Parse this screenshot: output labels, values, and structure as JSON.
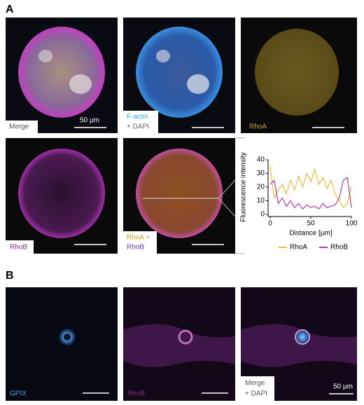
{
  "panels": {
    "a": {
      "label": "A",
      "merge": "Merge",
      "scale1": "50 µm",
      "factin": "F-actin",
      "dapi1": "+ DAPI",
      "rhoa": "RhoA",
      "rhob": "RhoB",
      "overlay_rhoa": "RhoA +",
      "overlay_rhob": "RhoB"
    },
    "b": {
      "label": "B",
      "gpix": "GPIX",
      "rhob": "RhoB",
      "merge": "Merge",
      "dapi": "+ DAPI",
      "scale": "50 µm"
    }
  },
  "chart_data": {
    "type": "line",
    "ylabel": "Fluorescence intensity",
    "xlabel": "Distance [µm]",
    "x": [
      0,
      5,
      10,
      15,
      20,
      25,
      30,
      35,
      40,
      45,
      50,
      55,
      60,
      65,
      70,
      75,
      80,
      85,
      90,
      95,
      100
    ],
    "series": [
      {
        "name": "RhoA",
        "color": "#f0b93c",
        "values": [
          35,
          12,
          18,
          22,
          15,
          25,
          18,
          28,
          20,
          30,
          24,
          33,
          22,
          27,
          19,
          25,
          15,
          10,
          5,
          8,
          20
        ]
      },
      {
        "name": "RhoB",
        "color": "#b03cb0",
        "values": [
          22,
          25,
          8,
          12,
          6,
          10,
          5,
          8,
          4,
          7,
          5,
          6,
          4,
          8,
          5,
          6,
          7,
          12,
          25,
          27,
          5
        ]
      }
    ],
    "xlim": [
      0,
      100
    ],
    "ylim": [
      0,
      40
    ],
    "xticks": [
      0,
      50,
      100
    ],
    "yticks": [
      0,
      10,
      20,
      30,
      40
    ]
  }
}
